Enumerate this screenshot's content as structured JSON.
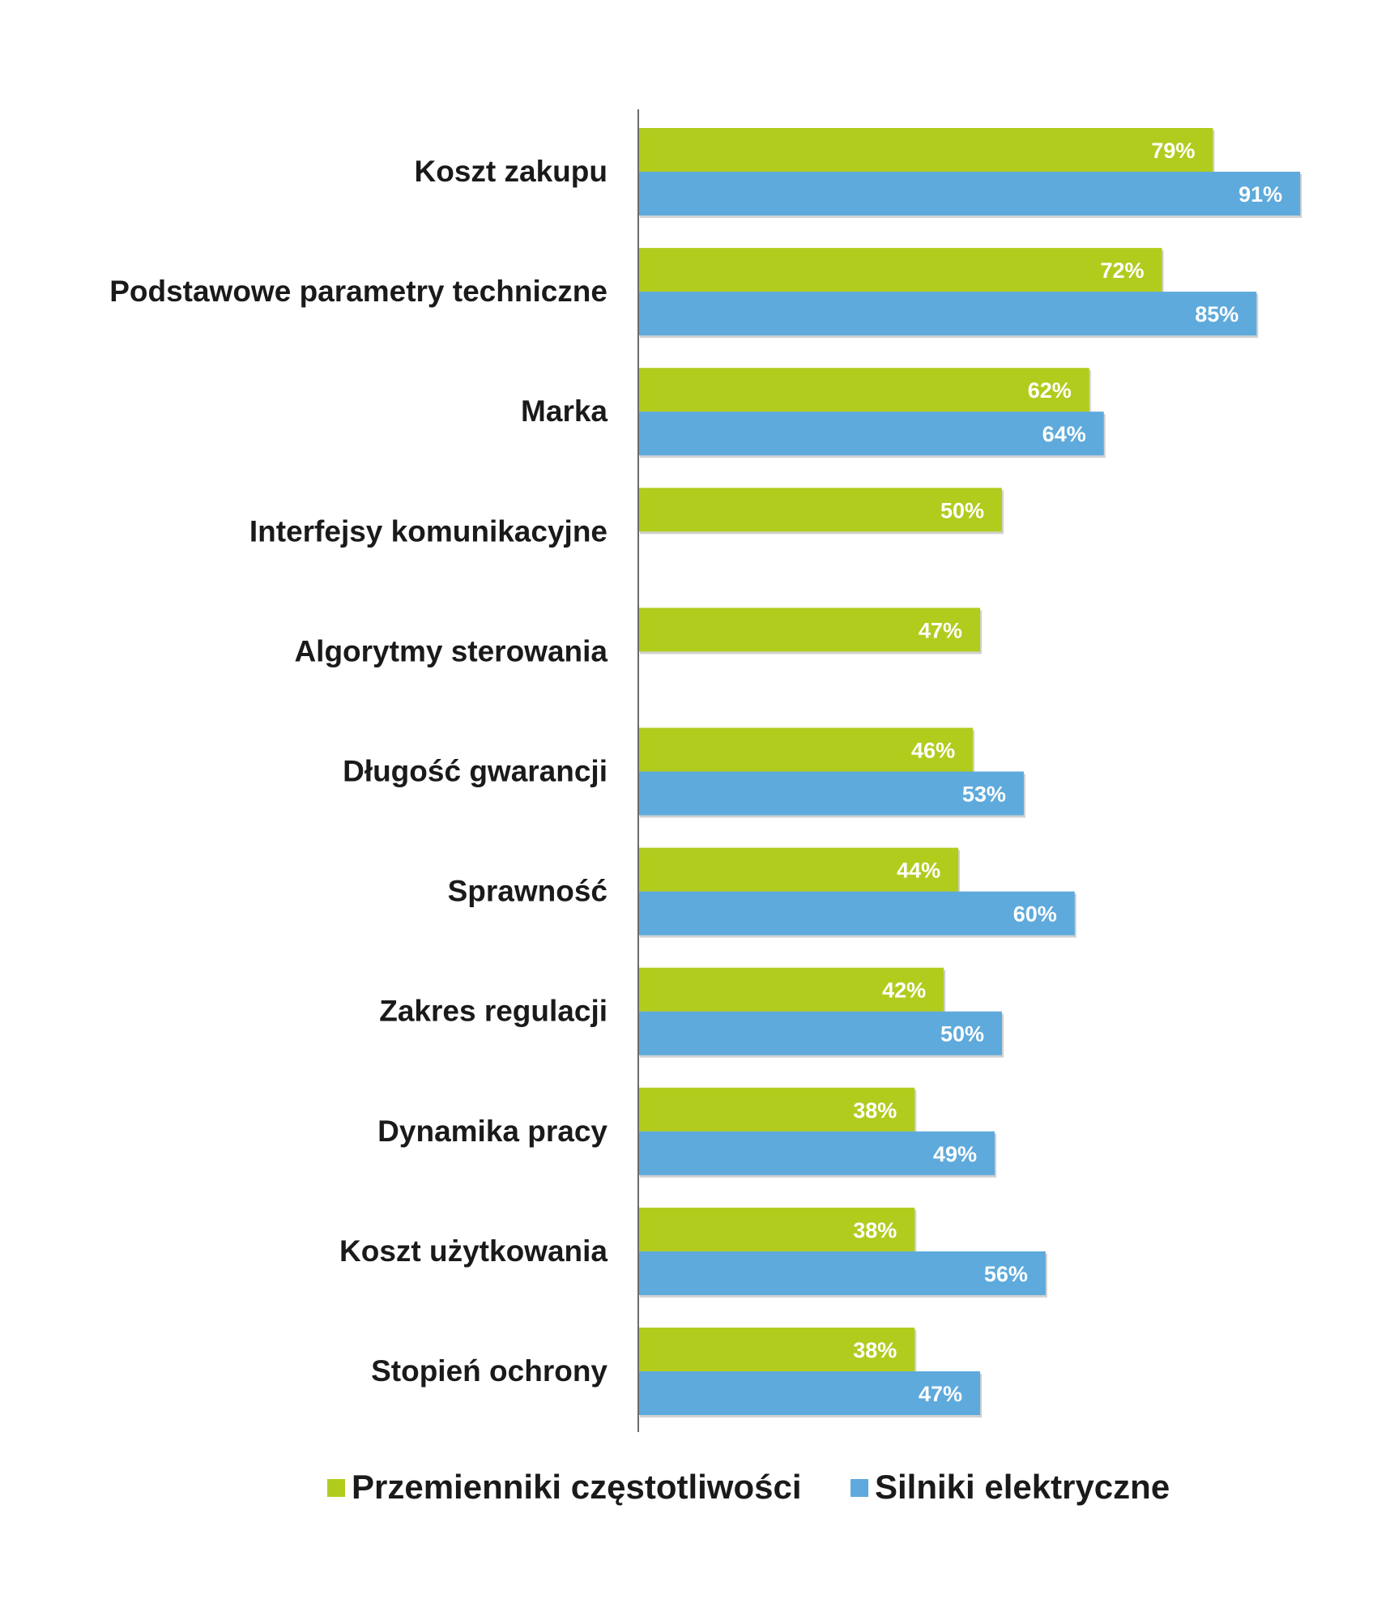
{
  "chart_data": {
    "type": "bar",
    "orientation": "horizontal",
    "categories": [
      "Koszt zakupu",
      "Podstawowe parametry techniczne",
      "Marka",
      "Interfejsy komunikacyjne",
      "Algorytmy sterowania",
      "Długość gwarancji",
      "Sprawność",
      "Zakres regulacji",
      "Dynamika pracy",
      "Koszt użytkowania",
      "Stopień ochrony"
    ],
    "series": [
      {
        "name": "Przemienniki częstotliwości",
        "color": "#b2cc1e",
        "values": [
          79,
          72,
          62,
          50,
          47,
          46,
          44,
          42,
          38,
          38,
          38
        ],
        "labels": [
          "79%",
          "72%",
          "62%",
          "50%",
          "47%",
          "46%",
          "44%",
          "42%",
          "38%",
          "38%",
          "38%"
        ]
      },
      {
        "name": "Silniki elektryczne",
        "color": "#5eaadc",
        "values": [
          91,
          85,
          64,
          null,
          null,
          53,
          60,
          50,
          49,
          56,
          47
        ],
        "labels": [
          "91%",
          "85%",
          "64%",
          "",
          "",
          "53%",
          "60%",
          "50%",
          "49%",
          "56%",
          "47%"
        ]
      }
    ],
    "xlim": [
      0,
      100
    ],
    "grid": false,
    "legend_position": "bottom",
    "title": "",
    "xlabel": "",
    "ylabel": ""
  }
}
